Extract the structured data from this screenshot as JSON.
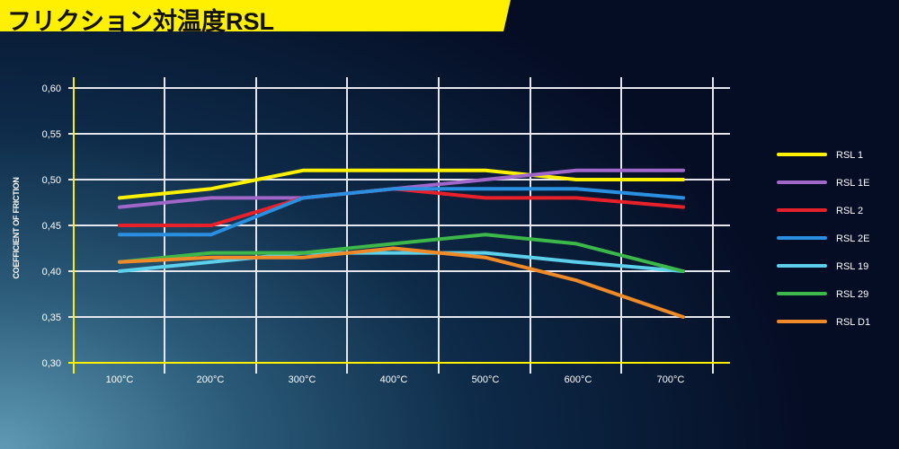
{
  "chart_data": {
    "type": "line",
    "title": "フリクション対温度RSL",
    "xlabel": "",
    "ylabel": "COEFFICIENT OF FRICTION",
    "categories": [
      "100°C",
      "200°C",
      "300°C",
      "400°C",
      "500°C",
      "600°C",
      "700°C"
    ],
    "y_ticks": [
      "0,30",
      "0,35",
      "0,40",
      "0,45",
      "0,50",
      "0,55",
      "0,60"
    ],
    "ylim": [
      0.3,
      0.6
    ],
    "grid": true,
    "legend_position": "right",
    "axis_color": "#ffef00",
    "series": [
      {
        "name": "RSL 1",
        "color": "#fff200",
        "values": [
          0.48,
          0.49,
          0.51,
          0.51,
          0.51,
          0.5,
          0.5
        ]
      },
      {
        "name": "RSL 1E",
        "color": "#a066c8",
        "values": [
          0.47,
          0.48,
          0.48,
          0.49,
          0.5,
          0.51,
          0.51
        ]
      },
      {
        "name": "RSL 2",
        "color": "#e8202a",
        "values": [
          0.45,
          0.45,
          0.48,
          0.49,
          0.48,
          0.48,
          0.47
        ]
      },
      {
        "name": "RSL 2E",
        "color": "#2a8fe0",
        "values": [
          0.44,
          0.44,
          0.48,
          0.49,
          0.49,
          0.49,
          0.48
        ]
      },
      {
        "name": "RSL 19",
        "color": "#5cd0ea",
        "values": [
          0.4,
          0.41,
          0.42,
          0.42,
          0.42,
          0.41,
          0.4
        ]
      },
      {
        "name": "RSL 29",
        "color": "#3cb84a",
        "values": [
          0.41,
          0.42,
          0.42,
          0.43,
          0.44,
          0.43,
          0.4
        ]
      },
      {
        "name": "RSL D1",
        "color": "#f08a28",
        "values": [
          0.41,
          0.415,
          0.415,
          0.425,
          0.415,
          0.39,
          0.35
        ]
      }
    ]
  }
}
